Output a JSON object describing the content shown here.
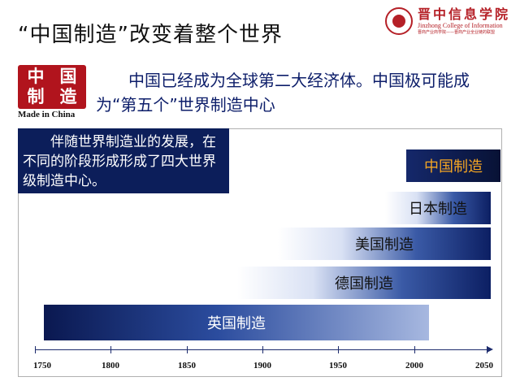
{
  "slide": {
    "title": "“中国制造”改变着整个世界",
    "lead_text": "中国已经成为全球第二大经济体。中国极可能成为“第五个”世界制造中心",
    "note_text": "伴随世界制造业的发展，在不同的阶段形成形成了四大世界级制造中心。"
  },
  "logo": {
    "name_cn": "晋中信息学院",
    "name_en": "Jinzhong College of Information",
    "slogan": "晋商产业商学院——晋商产业全业链的联盟"
  },
  "stamp": {
    "chars": [
      "中",
      "国",
      "制",
      "造"
    ],
    "caption": "Made in China"
  },
  "colors": {
    "accent_navy": "#0c1e5a",
    "stamp_red": "#b1141d",
    "highlight_orange": "#f5a623"
  },
  "timeline": {
    "axis_ticks": [
      "1750",
      "1800",
      "1850",
      "1900",
      "1950",
      "2000",
      "2050"
    ],
    "bars": [
      {
        "label": "中国制造"
      },
      {
        "label": "日本制造"
      },
      {
        "label": "美国制造"
      },
      {
        "label": "德国制造"
      },
      {
        "label": "英国制造"
      }
    ]
  }
}
